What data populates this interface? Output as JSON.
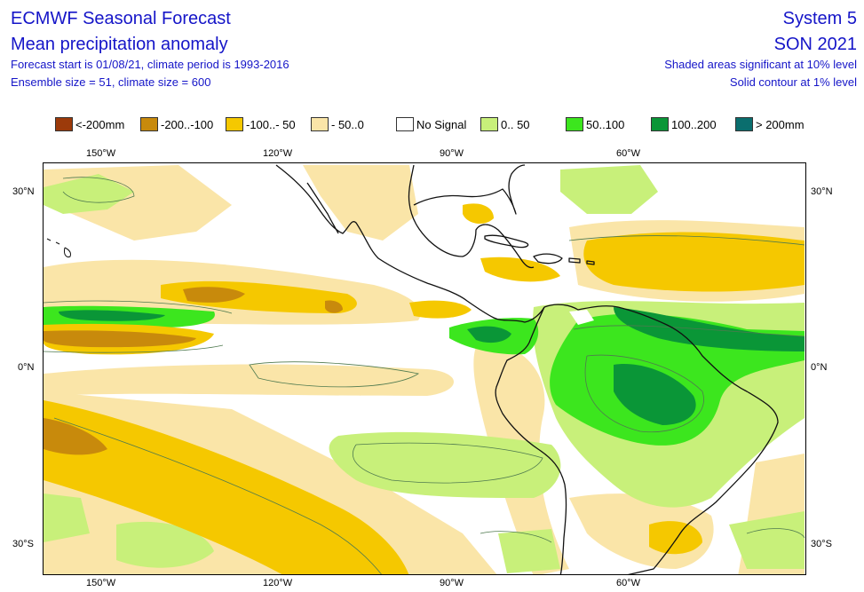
{
  "header": {
    "title": "ECMWF Seasonal Forecast",
    "subtitle": "Mean precipitation anomaly",
    "forecast_info": "Forecast start is 01/08/21, climate period is 1993-2016",
    "ensemble_info": "Ensemble size = 51, climate size = 600",
    "system": "System 5",
    "season": "SON 2021",
    "shading_note": "Shaded areas significant at 10% level",
    "contour_note": "Solid contour at 1% level"
  },
  "legend": [
    {
      "label": "<-200mm",
      "color": "#9c3a0a"
    },
    {
      "label": "-200..-100",
      "color": "#c88a0c"
    },
    {
      "label": "-100..- 50",
      "color": "#f5c800"
    },
    {
      "label": "- 50..0",
      "color": "#fae5a8"
    },
    {
      "label": "No Signal",
      "color": "#ffffff"
    },
    {
      "label": "0.. 50",
      "color": "#c8f07a"
    },
    {
      "label": "50..100",
      "color": "#3ce61e"
    },
    {
      "label": "100..200",
      "color": "#0a9637"
    },
    {
      "label": "> 200mm",
      "color": "#0a6e6e"
    }
  ],
  "axes": {
    "top": [
      "150°W",
      "120°W",
      "90°W",
      "60°W"
    ],
    "bottom": [
      "150°W",
      "120°W",
      "90°W",
      "60°W"
    ],
    "left": [
      "30°N",
      "0°N",
      "30°S"
    ],
    "right": [
      "30°N",
      "0°N",
      "30°S"
    ]
  }
}
